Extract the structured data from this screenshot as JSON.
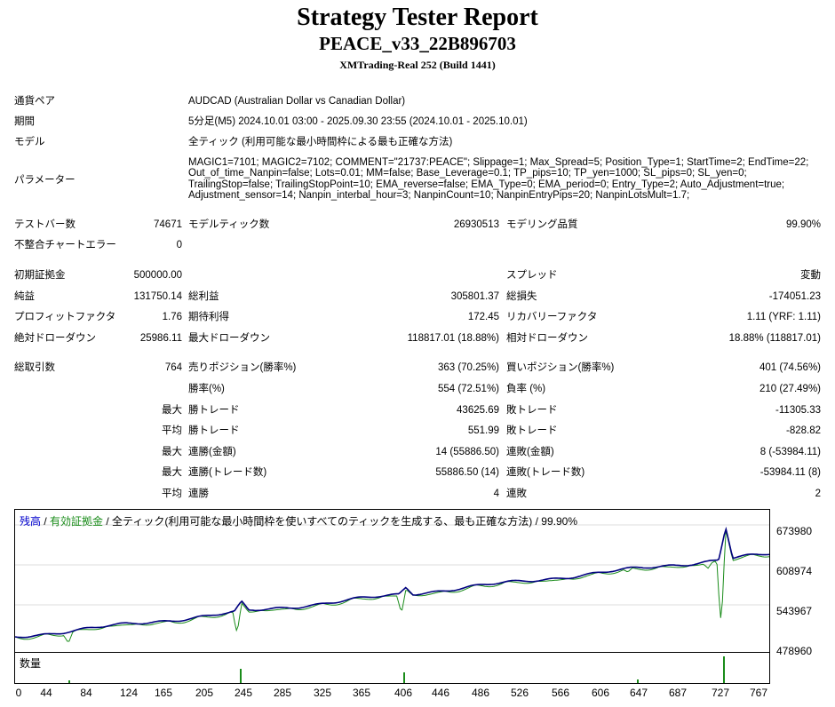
{
  "header": {
    "title": "Strategy Tester Report",
    "ea_name": "PEACE_v33_22B896703",
    "server": "XMTrading-Real 252 (Build 1441)"
  },
  "info": {
    "symbol_label": "通貨ペア",
    "symbol_value": "AUDCAD (Australian Dollar vs Canadian Dollar)",
    "period_label": "期間",
    "period_value": "5分足(M5) 2024.10.01 03:00 - 2025.09.30 23:55 (2024.10.01 - 2025.10.01)",
    "model_label": "モデル",
    "model_value": "全ティック (利用可能な最小時間枠による最も正確な方法)",
    "params_label": "パラメーター",
    "params_value": "MAGIC1=7101; MAGIC2=7102; COMMENT=\"21737:PEACE\"; Slippage=1; Max_Spread=5; Position_Type=1; StartTime=2; EndTime=22; Out_of_time_Nanpin=false; Lots=0.01; MM=false; Base_Leverage=0.1; TP_pips=10; TP_yen=1000; SL_pips=0; SL_yen=0; TrailingStop=false; TrailingStopPoint=10; EMA_reverse=false; EMA_Type=0; EMA_period=0; Entry_Type=2; Auto_Adjustment=true; Adjustment_sensor=14; Nanpin_interbal_hour=3; NanpinCount=10; NanpinEntryPips=20; NanpinLotsMult=1.7;"
  },
  "stats": {
    "bars_label": "テストバー数",
    "bars_value": "74671",
    "ticks_label": "モデルティック数",
    "ticks_value": "26930513",
    "quality_label": "モデリング品質",
    "quality_value": "99.90%",
    "mismatch_label": "不整合チャートエラー",
    "mismatch_value": "0",
    "deposit_label": "初期証拠金",
    "deposit_value": "500000.00",
    "spread_label": "スプレッド",
    "spread_value": "変動",
    "net_label": "純益",
    "net_value": "131750.14",
    "gross_profit_label": "総利益",
    "gross_profit_value": "305801.37",
    "gross_loss_label": "総損失",
    "gross_loss_value": "-174051.23",
    "pf_label": "プロフィットファクタ",
    "pf_value": "1.76",
    "payoff_label": "期待利得",
    "payoff_value": "172.45",
    "recovery_label": "リカバリーファクタ",
    "recovery_value": "1.11 (YRF: 1.11)",
    "abs_dd_label": "絶対ドローダウン",
    "abs_dd_value": "25986.11",
    "max_dd_label": "最大ドローダウン",
    "max_dd_value": "118817.01 (18.88%)",
    "rel_dd_label": "相対ドローダウン",
    "rel_dd_value": "18.88% (118817.01)",
    "trades_label": "総取引数",
    "trades_value": "764",
    "short_label": "売りポジション(勝率%)",
    "short_value": "363 (70.25%)",
    "long_label": "買いポジション(勝率%)",
    "long_value": "401 (74.56%)",
    "win_rate_label": "勝率(%)",
    "win_rate_value": "554 (72.51%)",
    "loss_rate_label": "負率 (%)",
    "loss_rate_value": "210 (27.49%)",
    "max_word": "最大",
    "avg_word": "平均",
    "max_win_label": "勝トレード",
    "max_win_value": "43625.69",
    "max_loss_label": "敗トレード",
    "max_loss_value": "-11305.33",
    "avg_win_label": "勝トレード",
    "avg_win_value": "551.99",
    "avg_loss_label": "敗トレード",
    "avg_loss_value": "-828.82",
    "cons_win_amt_label": "連勝(金額)",
    "cons_win_amt_value": "14 (55886.50)",
    "cons_loss_amt_label": "連敗(金額)",
    "cons_loss_amt_value": "8 (-53984.11)",
    "cons_win_trd_label": "連勝(トレード数)",
    "cons_win_trd_value": "55886.50 (14)",
    "cons_loss_trd_label": "連敗(トレード数)",
    "cons_loss_trd_value": "-53984.11 (8)",
    "avg_cons_win_label": "連勝",
    "avg_cons_win_value": "4",
    "avg_cons_loss_label": "連敗",
    "avg_cons_loss_value": "2"
  },
  "chart": {
    "legend_balance": "残高",
    "legend_sep": " / ",
    "legend_equity": "有効証拠金",
    "legend_rest": " / 全ティック(利用可能な最小時間枠を使いすべてのティックを生成する、最も正確な方法) / 99.90%",
    "volume_label": "数量",
    "y_ticks": [
      "673980",
      "608974",
      "543967",
      "478960"
    ],
    "x_ticks": [
      "0",
      "44",
      "84",
      "124",
      "165",
      "205",
      "245",
      "285",
      "325",
      "365",
      "406",
      "446",
      "486",
      "526",
      "566",
      "606",
      "647",
      "687",
      "727",
      "767"
    ],
    "colors": {
      "balance": "#00007f",
      "equity": "#1a8c1a",
      "legend_balance": "#0000cc",
      "legend_equity": "#1a8c1a"
    }
  }
}
